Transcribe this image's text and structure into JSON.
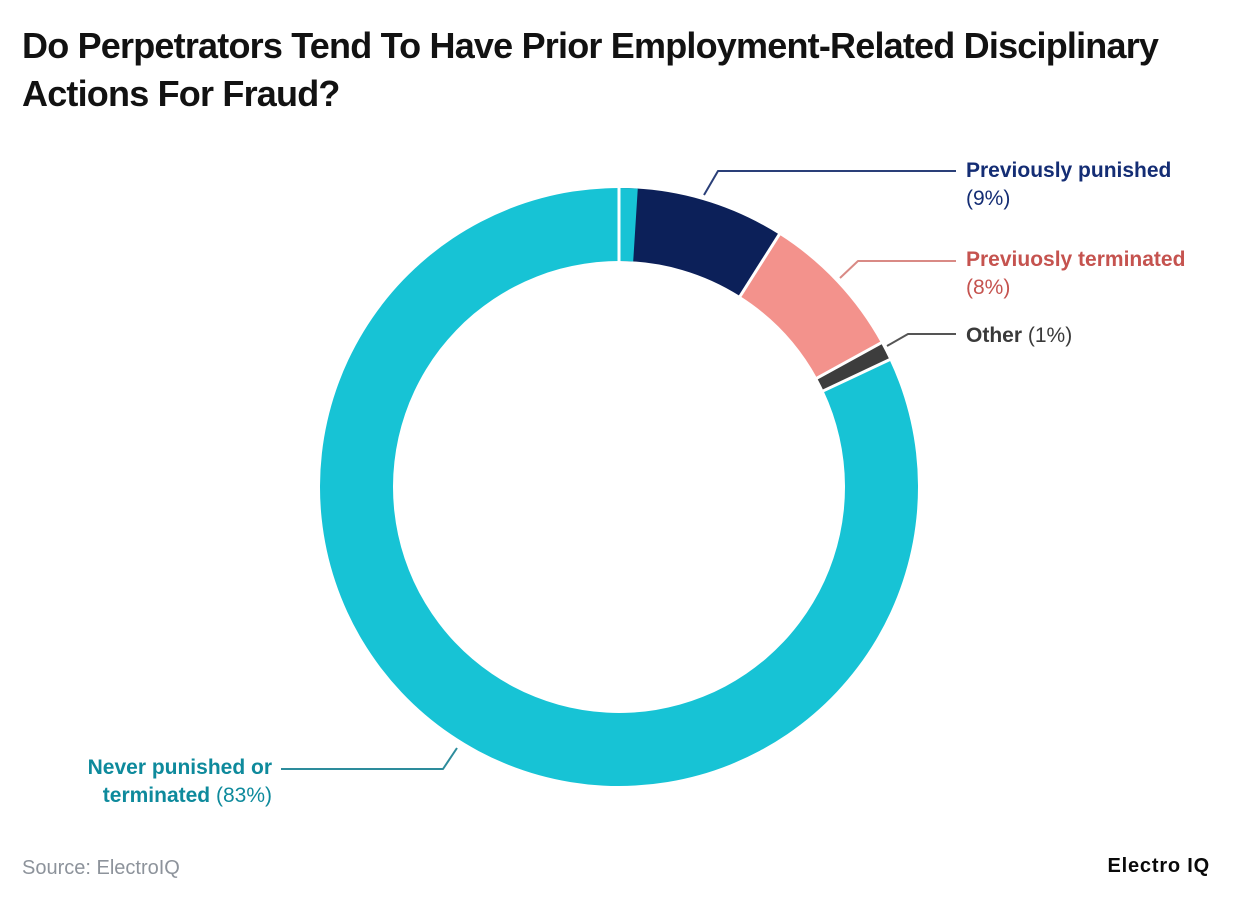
{
  "title": "Do Perpetrators Tend To Have Prior Employment-Related Disciplinary Actions For Fraud?",
  "source": "Source: ElectroIQ",
  "brand": "Electro IQ",
  "chart_data": {
    "type": "pie",
    "subtype": "donut",
    "title": "Do Perpetrators Tend To Have Prior Employment-Related Disciplinary Actions For Fraud?",
    "unit": "%",
    "start_angle_deg": 0,
    "direction": "clockwise",
    "legend_position": "callouts",
    "separator_color": "#ffffff",
    "segments": [
      {
        "label": "Previously punished",
        "value": 9,
        "display": "(9%)",
        "color": "#0c2059",
        "label_color": "#142d74",
        "leader_color": "#2a3f78"
      },
      {
        "label": "Previuosly terminated",
        "value": 8,
        "display": "(8%)",
        "color": "#f3928c",
        "label_color": "#c5534f",
        "leader_color": "#d98a85"
      },
      {
        "label": "Other",
        "value": 1,
        "display": "(1%)",
        "color": "#3d3d3d",
        "label_color": "#3a3a3a",
        "leader_color": "#555555"
      },
      {
        "label": "Never punished or terminated",
        "value": 83,
        "display": "(83%)",
        "label_lines": [
          "Never punished or",
          "terminated"
        ],
        "color": "#17c3d5",
        "label_color": "#0e8a9c",
        "leader_color": "#2d8c9c"
      }
    ]
  }
}
